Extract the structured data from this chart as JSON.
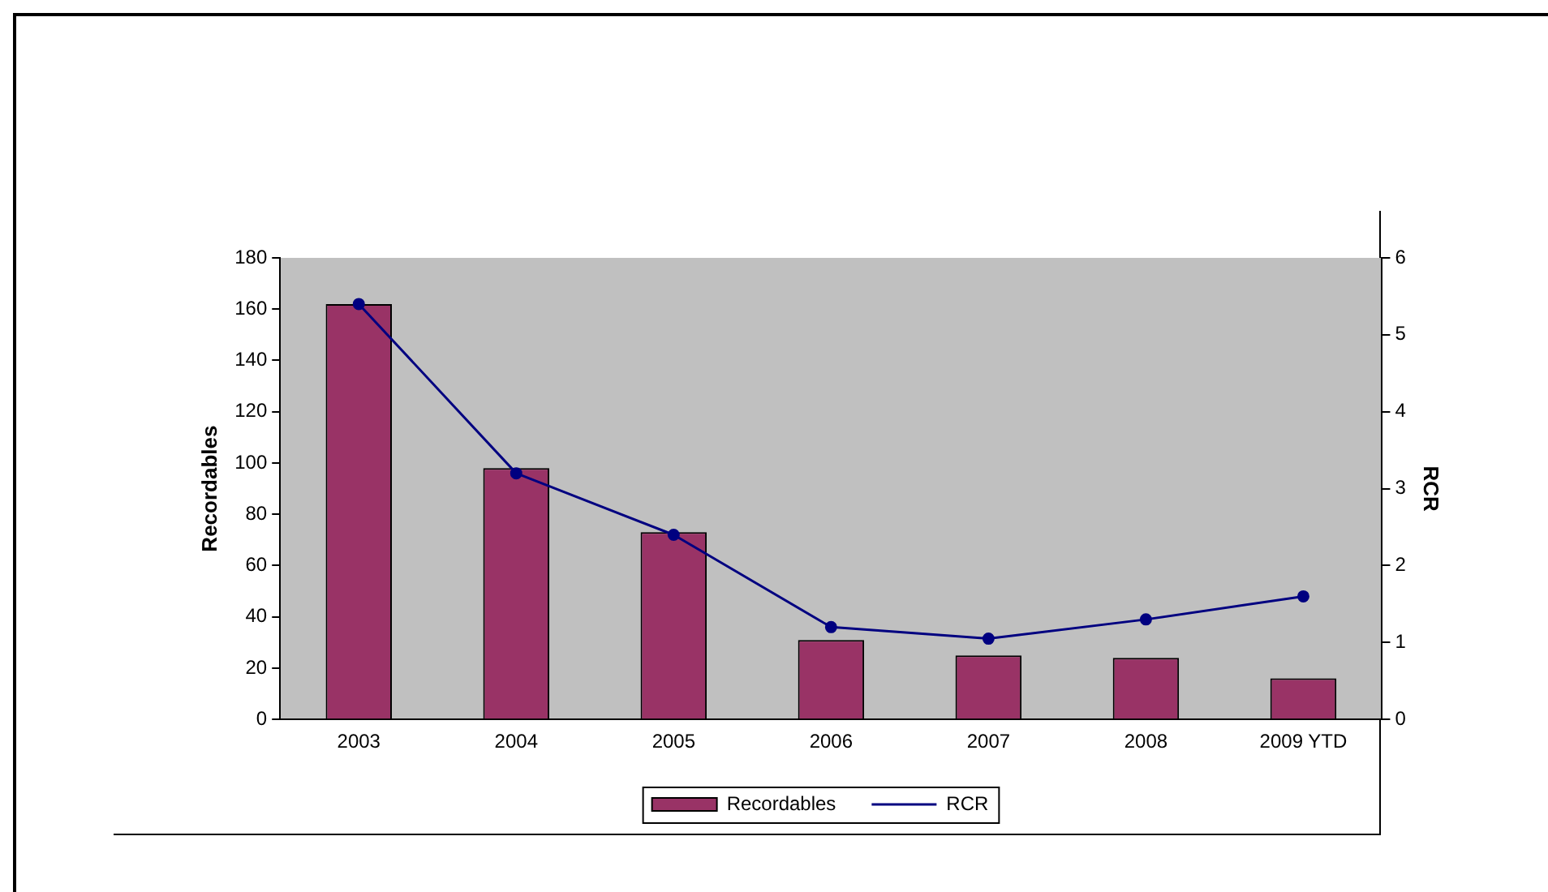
{
  "chart_data": {
    "type": "bar",
    "categories": [
      "2003",
      "2004",
      "2005",
      "2006",
      "2007",
      "2008",
      "2009 YTD"
    ],
    "series": [
      {
        "name": "Recordables",
        "color": "#993366",
        "values": [
          162,
          98,
          73,
          31,
          25,
          24,
          16
        ]
      },
      {
        "name": "RCR",
        "type": "line",
        "axis": "y2",
        "color": "#000080",
        "marker": "circle",
        "values": [
          5.4,
          3.2,
          2.4,
          1.2,
          1.05,
          1.3,
          1.6
        ]
      }
    ],
    "ylabel": "Recordables",
    "y2label": "RCR",
    "ylim": [
      0,
      180
    ],
    "yticks": [
      0,
      20,
      40,
      60,
      80,
      100,
      120,
      140,
      160,
      180
    ],
    "y2lim": [
      0,
      6
    ],
    "y2ticks": [
      0,
      1,
      2,
      3,
      4,
      5,
      6
    ],
    "grid": false,
    "legend": "bottom"
  }
}
